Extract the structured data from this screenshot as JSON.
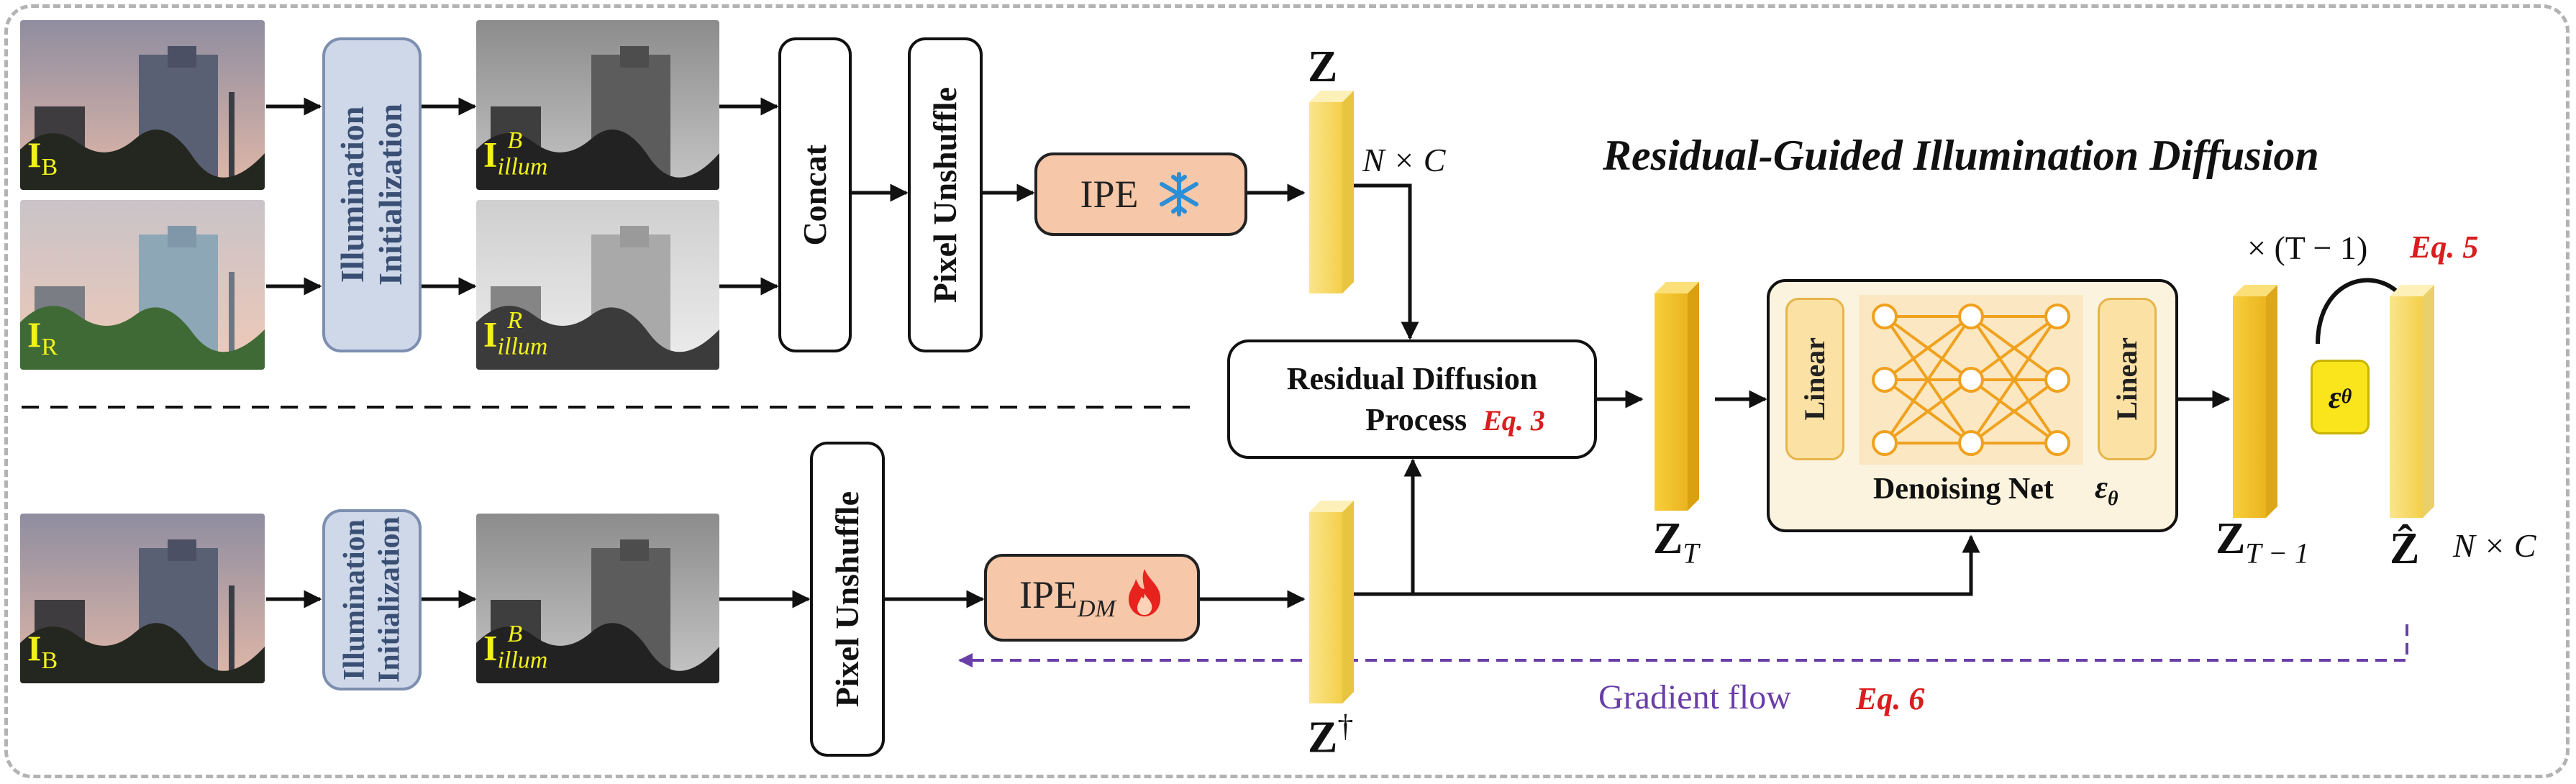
{
  "title": "Residual-Guided Illumination Diffusion",
  "images": {
    "top_input_1": {
      "label_main": "I",
      "label_sub": "B"
    },
    "top_input_2": {
      "label_main": "I",
      "label_sub": "R"
    },
    "top_illum_1": {
      "label_main": "I",
      "label_sub": "illum",
      "label_sup": "B"
    },
    "top_illum_2": {
      "label_main": "I",
      "label_sub": "illum",
      "label_sup": "R"
    },
    "bottom_input": {
      "label_main": "I",
      "label_sub": "B"
    },
    "bottom_illum": {
      "label_main": "I",
      "label_sub": "illum",
      "label_sup": "B"
    }
  },
  "blocks": {
    "illum_init": "Illumination\nInitialization",
    "concat": "Concat",
    "pixel_unshuffle": "Pixel Unshuffle",
    "ipe": "IPE",
    "ipe_dm_main": "IPE",
    "ipe_dm_sub": "DM",
    "rdp_line1": "Residual Diffusion",
    "rdp_line2": "Process",
    "rdp_eq": "Eq. 3",
    "linear": "Linear",
    "denoising_net": "Denoising Net",
    "eps": "ε",
    "eps_sub": "θ"
  },
  "symbols": {
    "z": "Z",
    "z_dagger": "Z",
    "dagger": "†",
    "z_T": "Z",
    "T": "T",
    "z_T1": "Z",
    "T1": "T − 1",
    "z_hat": "Ẑ",
    "nxc": "N × C",
    "loop_label": "× (T − 1)",
    "loop_eq": "Eq. 5"
  },
  "gradient": {
    "label": "Gradient flow",
    "eq": "Eq. 6"
  },
  "colors": {
    "label_yellow": "#f2f21a",
    "eq_red": "#d81e1e",
    "gradient_purple": "#6a3fa8",
    "illum_box": "#cfd8e8",
    "ipe_box": "#f6c7a8",
    "feature_yellow": "#f7d75a",
    "denoise_bg": "#fbf3dd",
    "node_orange": "#f0a11e"
  },
  "icons": {
    "frozen": "snowflake-icon",
    "trainable": "fire-icon"
  }
}
